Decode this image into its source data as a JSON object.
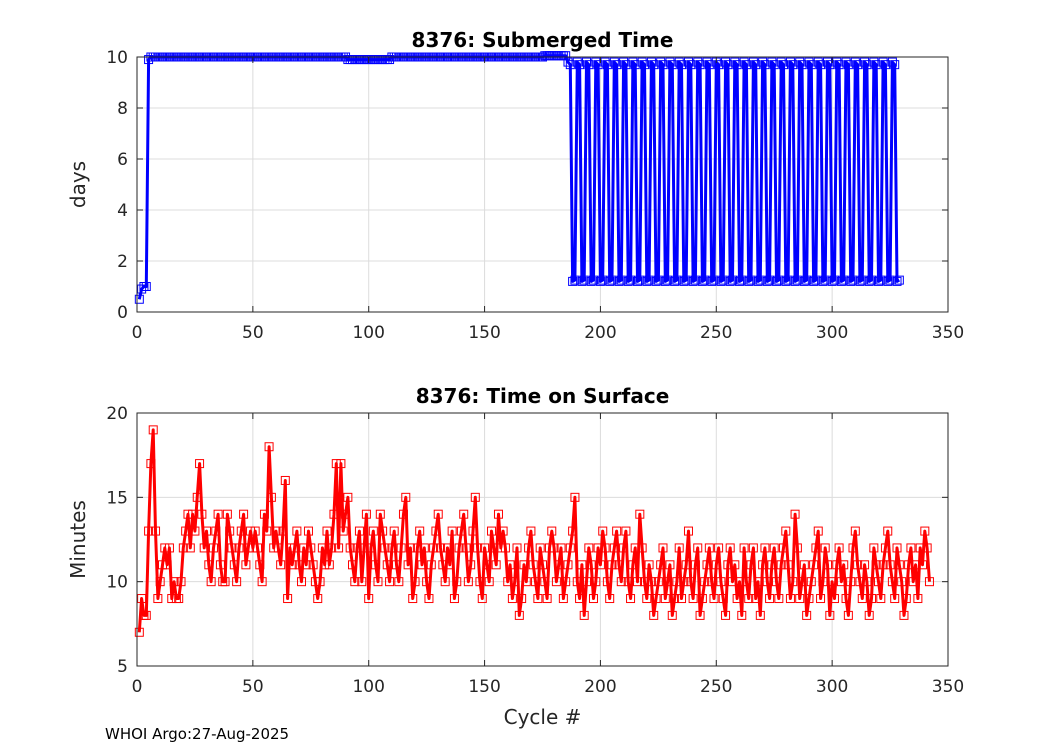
{
  "footer_text": "WHOI Argo:27-Aug-2025",
  "chart_data": [
    {
      "type": "line",
      "title": "8376: Submerged Time",
      "xlabel": "",
      "ylabel": "days",
      "xlim": [
        0,
        350
      ],
      "ylim": [
        0,
        10
      ],
      "xticks": [
        0,
        50,
        100,
        150,
        200,
        250,
        300,
        350
      ],
      "yticks": [
        0,
        2,
        4,
        6,
        8,
        10
      ],
      "grid": true,
      "color": "#0000ff",
      "marker": "square",
      "series": [
        {
          "name": "Submerged Time",
          "description": "cycles 1-4 ramp from 0.5 to 1 day, then ~10 days through cycle 185, then alternating ~9.8 and ~1.2 day cycles through 329",
          "segments": [
            {
              "x": [
                1,
                2,
                3,
                4,
                5,
                6
              ],
              "y": [
                0.5,
                0.9,
                1.0,
                1.0,
                9.9,
                10.0
              ]
            },
            {
              "x_start": 6,
              "x_end": 185,
              "y": 10.0
            },
            {
              "pattern": "alternating",
              "x_start": 186,
              "x_end": 329,
              "high": 9.8,
              "low": 1.2,
              "period": 4
            }
          ]
        }
      ]
    },
    {
      "type": "line",
      "title": "8376: Time on Surface",
      "xlabel": "Cycle #",
      "ylabel": "Minutes",
      "xlim": [
        0,
        350
      ],
      "ylim": [
        5,
        20
      ],
      "xticks": [
        0,
        50,
        100,
        150,
        200,
        250,
        300,
        350
      ],
      "yticks": [
        5,
        10,
        15,
        20
      ],
      "grid": true,
      "color": "#ff0000",
      "marker": "square",
      "series": [
        {
          "name": "Time on Surface",
          "x_start": 1,
          "values": [
            7,
            9,
            8,
            8,
            13,
            17,
            19,
            13,
            9,
            10,
            11,
            12,
            11,
            12,
            9,
            10,
            9,
            9,
            10,
            12,
            13,
            14,
            12,
            14,
            13,
            15,
            17,
            14,
            12,
            13,
            11,
            10,
            12,
            13,
            14,
            11,
            10,
            10,
            14,
            13,
            12,
            11,
            10,
            12,
            13,
            14,
            11,
            12,
            13,
            12,
            13,
            12,
            11,
            10,
            14,
            13,
            18,
            15,
            12,
            13,
            12,
            11,
            13,
            16,
            9,
            12,
            11,
            12,
            13,
            11,
            10,
            12,
            11,
            13,
            12,
            11,
            10,
            9,
            10,
            12,
            11,
            13,
            11,
            12,
            14,
            17,
            12,
            17,
            13,
            14,
            15,
            12,
            11,
            10,
            12,
            13,
            10,
            12,
            14,
            9,
            12,
            13,
            11,
            10,
            14,
            13,
            12,
            11,
            10,
            12,
            13,
            11,
            10,
            12,
            14,
            15,
            11,
            12,
            9,
            10,
            12,
            13,
            11,
            12,
            10,
            9,
            11,
            12,
            13,
            14,
            12,
            11,
            10,
            12,
            11,
            13,
            9,
            10,
            12,
            13,
            14,
            12,
            10,
            11,
            13,
            15,
            12,
            10,
            9,
            12,
            11,
            10,
            13,
            12,
            11,
            14,
            12,
            13,
            12,
            10,
            11,
            9,
            10,
            12,
            8,
            9,
            11,
            10,
            12,
            13,
            11,
            10,
            9,
            12,
            11,
            10,
            9,
            12,
            13,
            12,
            10,
            11,
            12,
            9,
            10,
            11,
            12,
            13,
            15,
            10,
            9,
            11,
            8,
            10,
            12,
            11,
            9,
            10,
            12,
            11,
            13,
            12,
            10,
            9,
            11,
            12,
            13,
            11,
            10,
            12,
            13,
            10,
            9,
            11,
            12,
            10,
            14,
            12,
            10,
            9,
            11,
            10,
            8,
            9,
            10,
            11,
            12,
            9,
            10,
            11,
            8,
            9,
            10,
            12,
            9,
            10,
            11,
            13,
            10,
            9,
            11,
            12,
            8,
            9,
            10,
            11,
            12,
            10,
            9,
            11,
            12,
            10,
            9,
            8,
            11,
            12,
            10,
            11,
            9,
            10,
            8,
            12,
            10,
            9,
            11,
            12,
            9,
            10,
            8,
            11,
            12,
            10,
            9,
            11,
            12,
            10,
            9,
            11,
            12,
            13,
            11,
            9,
            10,
            14,
            12,
            9,
            10,
            11,
            8,
            9,
            10,
            11,
            12,
            13,
            9,
            10,
            12,
            11,
            8,
            10,
            9,
            11,
            12,
            10,
            11,
            9,
            8,
            10,
            12,
            13,
            11,
            10,
            9,
            11,
            10,
            8,
            9,
            12,
            11,
            10,
            9,
            11,
            12,
            13,
            11,
            10,
            9,
            12,
            11,
            10,
            8,
            9,
            11,
            12,
            10,
            11,
            9,
            12,
            11,
            13,
            12,
            10
          ]
        }
      ]
    }
  ]
}
